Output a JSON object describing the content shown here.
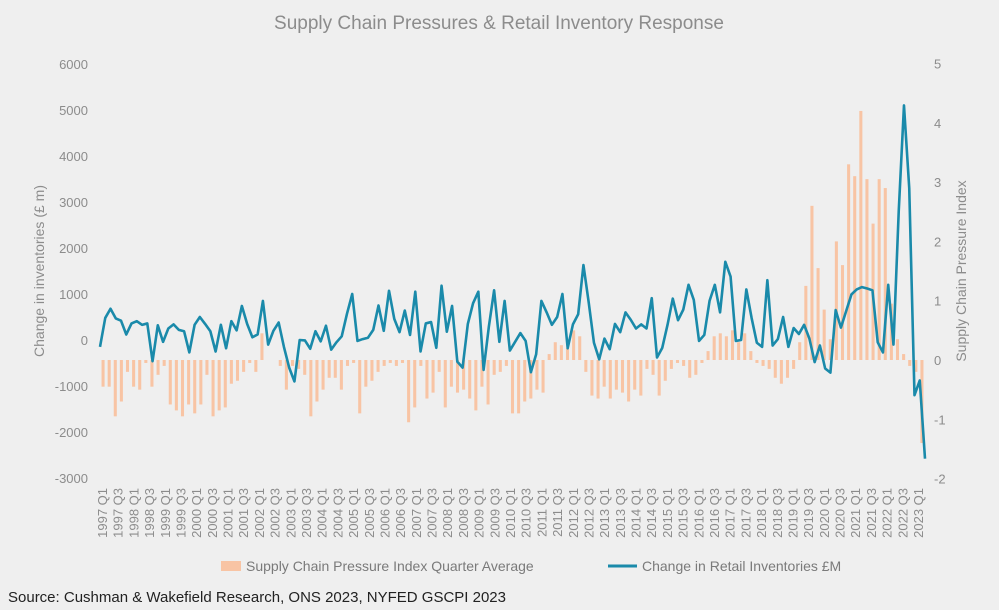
{
  "chart_data": {
    "type": "bar+line",
    "title": "Supply Chain Pressures & Retail Inventory Response",
    "ylabel_left": "Change in inventories (£ m)",
    "ylabel_right": "Supply Chain Pressure Index",
    "ylim_left": [
      -3000,
      6000
    ],
    "yticks_left": [
      "6000",
      "5000",
      "4000",
      "3000",
      "2000",
      "1000",
      "0",
      "-1000",
      "-2000",
      "-3000"
    ],
    "ylim_right": [
      -2,
      5
    ],
    "yticks_right": [
      "5",
      "4",
      "3",
      "2",
      "1",
      "0",
      "-1",
      "-2"
    ],
    "grid": false,
    "legend_position": "bottom",
    "x_tick_labels": [
      "1997 Q1",
      "1997 Q3",
      "1998 Q1",
      "1998 Q3",
      "1999 Q1",
      "1999 Q3",
      "2000 Q1",
      "2000 Q3",
      "2001 Q1",
      "2001 Q3",
      "2002 Q1",
      "2002 Q3",
      "2003 Q1",
      "2003 Q3",
      "2004 Q1",
      "2004 Q3",
      "2005 Q1",
      "2005 Q3",
      "2006 Q1",
      "2006 Q3",
      "2007 Q1",
      "2007 Q3",
      "2008 Q1",
      "2008 Q3",
      "2009 Q1",
      "2009 Q3",
      "2010 Q1",
      "2010 Q3",
      "2011 Q1",
      "2011 Q3",
      "2012 Q1",
      "2012 Q3",
      "2013 Q1",
      "2013 Q3",
      "2014 Q1",
      "2014 Q3",
      "2015 Q1",
      "2015 Q3",
      "2016 Q1",
      "2016 Q3",
      "2017 Q1",
      "2017 Q3",
      "2018 Q1",
      "2018 Q3",
      "2019 Q1",
      "2019 Q3",
      "2020 Q1",
      "2020 Q3",
      "2021 Q1",
      "2021 Q3",
      "2022 Q1",
      "2022 Q3",
      "2023 Q1"
    ],
    "series": [
      {
        "name": "Supply Chain Pressure Index Quarter Average",
        "type": "bar",
        "axis": "right",
        "color": "#f8c4a4",
        "values": [
          -0.45,
          -0.45,
          -0.95,
          -0.7,
          -0.2,
          -0.45,
          -0.5,
          -0.05,
          -0.45,
          -0.25,
          -0.1,
          -0.75,
          -0.85,
          -0.95,
          -0.75,
          -0.9,
          -0.75,
          -0.25,
          -0.95,
          -0.85,
          -0.8,
          -0.4,
          -0.35,
          -0.2,
          -0.05,
          -0.2,
          0.45,
          0.0,
          0.0,
          -0.1,
          -0.5,
          -0.1,
          -0.15,
          -0.25,
          -0.95,
          -0.7,
          -0.5,
          -0.3,
          -0.3,
          -0.5,
          -0.1,
          -0.05,
          -0.9,
          -0.45,
          -0.35,
          -0.2,
          -0.1,
          -0.05,
          -0.1,
          -0.05,
          -1.05,
          -0.8,
          -0.1,
          -0.65,
          -0.55,
          -0.2,
          -0.8,
          -0.45,
          -0.55,
          -0.5,
          -0.65,
          -0.85,
          -0.45,
          -0.75,
          -0.25,
          -0.2,
          -0.1,
          -0.9,
          -0.9,
          -0.7,
          -0.65,
          -0.5,
          -0.55,
          0.1,
          0.3,
          0.25,
          0.2,
          0.5,
          0.4,
          -0.2,
          -0.6,
          -0.65,
          -0.45,
          -0.65,
          -0.5,
          -0.55,
          -0.7,
          -0.5,
          -0.6,
          -0.15,
          -0.25,
          -0.6,
          -0.35,
          -0.15,
          -0.05,
          -0.1,
          -0.3,
          -0.25,
          -0.05,
          0.15,
          0.4,
          0.45,
          0.4,
          0.5,
          0.3,
          0.45,
          0.15,
          -0.05,
          -0.1,
          -0.15,
          -0.3,
          -0.4,
          -0.3,
          -0.15,
          0.3,
          1.25,
          2.6,
          1.55,
          0.85,
          0.35,
          2.0,
          1.6,
          3.3,
          3.1,
          4.2,
          3.05,
          2.3,
          3.05,
          2.9,
          0.95,
          0.35,
          0.1,
          -0.1,
          -0.2,
          -1.4
        ]
      },
      {
        "name": "Change in Retail Inventories £M",
        "type": "line",
        "axis": "left",
        "color": "#1a8aaa",
        "values": [
          -150,
          480,
          680,
          470,
          420,
          120,
          360,
          410,
          330,
          360,
          -460,
          320,
          -40,
          250,
          340,
          220,
          190,
          -270,
          330,
          500,
          350,
          190,
          -250,
          330,
          -180,
          410,
          210,
          740,
          350,
          60,
          120,
          850,
          -100,
          200,
          380,
          -150,
          -600,
          -900,
          0,
          -10,
          -190,
          190,
          -30,
          310,
          -210,
          -50,
          80,
          570,
          1000,
          -20,
          20,
          50,
          220,
          750,
          200,
          1070,
          460,
          170,
          640,
          110,
          1050,
          -250,
          360,
          390,
          -170,
          1180,
          180,
          740,
          -470,
          -600,
          350,
          800,
          1050,
          -650,
          290,
          1080,
          -40,
          850,
          -230,
          -40,
          150,
          -20,
          -700,
          -310,
          850,
          600,
          330,
          500,
          1000,
          -180,
          340,
          560,
          1630,
          820,
          -60,
          -420,
          30,
          -200,
          350,
          170,
          600,
          440,
          250,
          340,
          250,
          910,
          -380,
          -170,
          330,
          900,
          430,
          660,
          1200,
          870,
          -20,
          110,
          850,
          1200,
          600,
          1700,
          1380,
          -20,
          0,
          1100,
          480,
          -60,
          -150,
          1300,
          -120,
          20,
          500,
          -150,
          260,
          130,
          330,
          30,
          -480,
          -120,
          -620,
          -710,
          650,
          270,
          630,
          990,
          1100,
          1150,
          1120,
          1080,
          -50,
          -270,
          1200,
          -100,
          2800,
          5100,
          3300,
          -1200,
          -880,
          -2580
        ]
      }
    ]
  },
  "legend": {
    "items": [
      {
        "label": "Supply Chain Pressure Index Quarter Average",
        "color": "#f8c4a4"
      },
      {
        "label": "Change in Retail Inventories £M",
        "color": "#1a8aaa"
      }
    ]
  },
  "source_text": "Source: Cushman & Wakefield Research, ONS 2023, NYFED GSCPI 2023"
}
